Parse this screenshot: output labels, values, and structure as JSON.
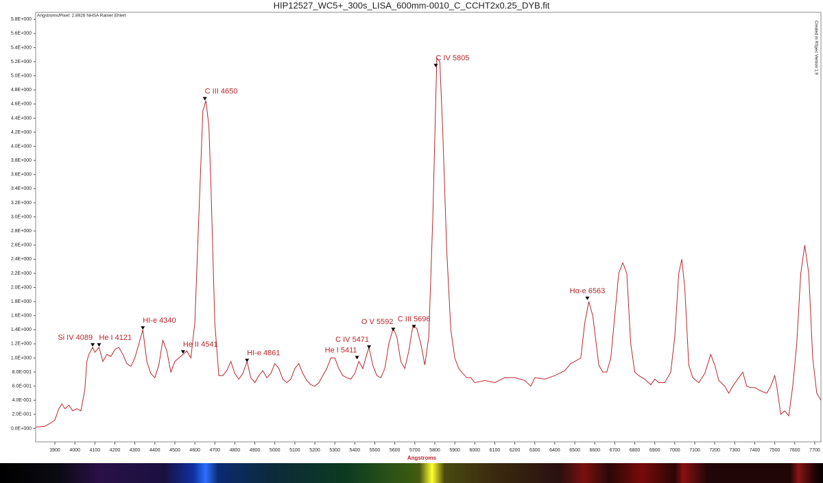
{
  "chart_data": {
    "type": "line",
    "title": "HIP12527_WC5+_300s_LISA_600mm-0010_C_CCHT2x0.25_DYB.fit",
    "subtitle": "Angstroms/Pixel: 2.8926 NHSA Rainer Ehlert",
    "credit": "Created in RSpec Version 1.9",
    "xlabel": "Angstroms",
    "color": "#b8262b",
    "grid": false,
    "xlim": [
      3804,
      7731
    ],
    "ylim": [
      -0.19,
      5.9
    ],
    "xticks": [
      3900,
      4000,
      4100,
      4200,
      4300,
      4400,
      4500,
      4600,
      4700,
      4800,
      4900,
      5000,
      5100,
      5200,
      5300,
      5400,
      5500,
      5600,
      5700,
      5800,
      5900,
      6000,
      6100,
      6200,
      6300,
      6400,
      6500,
      6600,
      6700,
      6800,
      6900,
      7000,
      7100,
      7200,
      7300,
      7400,
      7500,
      7600,
      7700
    ],
    "yticks": [
      {
        "value": 0,
        "label": "0.0E+000"
      },
      {
        "value": 0.2,
        "label": "2.0E-001"
      },
      {
        "value": 0.4,
        "label": "4.0E-001"
      },
      {
        "value": 0.6,
        "label": "6.0E-001"
      },
      {
        "value": 0.8,
        "label": "8.0E-001"
      },
      {
        "value": 1.0,
        "label": "1.0E+000"
      },
      {
        "value": 1.2,
        "label": "1.2E+000"
      },
      {
        "value": 1.4,
        "label": "1.4E+000"
      },
      {
        "value": 1.6,
        "label": "1.6E+000"
      },
      {
        "value": 1.8,
        "label": "1.8E+000"
      },
      {
        "value": 2.0,
        "label": "2.0E+000"
      },
      {
        "value": 2.2,
        "label": "2.2E+000"
      },
      {
        "value": 2.4,
        "label": "2.4E+000"
      },
      {
        "value": 2.6,
        "label": "2.6E+000"
      },
      {
        "value": 2.8,
        "label": "2.8E+000"
      },
      {
        "value": 3.0,
        "label": "3.0E+000"
      },
      {
        "value": 3.2,
        "label": "3.2E+000"
      },
      {
        "value": 3.4,
        "label": "3.4E+000"
      },
      {
        "value": 3.6,
        "label": "3.6E+000"
      },
      {
        "value": 3.8,
        "label": "3.8E+000"
      },
      {
        "value": 4.0,
        "label": "4.0E+000"
      },
      {
        "value": 4.2,
        "label": "4.2E+000"
      },
      {
        "value": 4.4,
        "label": "4.4E+000"
      },
      {
        "value": 4.6,
        "label": "4.6E+000"
      },
      {
        "value": 4.8,
        "label": "4.8E+000"
      },
      {
        "value": 5.0,
        "label": "5.0E+000"
      },
      {
        "value": 5.2,
        "label": "5.2E+000"
      },
      {
        "value": 5.4,
        "label": "5.4E+000"
      },
      {
        "value": 5.6,
        "label": "5.6E+000"
      },
      {
        "value": 5.8,
        "label": "5.8E+000"
      }
    ],
    "x": [
      3804,
      3850,
      3880,
      3900,
      3920,
      3935,
      3950,
      3970,
      3990,
      4010,
      4030,
      4050,
      4060,
      4070,
      4089,
      4100,
      4121,
      4140,
      4160,
      4180,
      4200,
      4220,
      4240,
      4260,
      4280,
      4300,
      4320,
      4340,
      4360,
      4380,
      4400,
      4420,
      4440,
      4460,
      4480,
      4500,
      4520,
      4541,
      4560,
      4580,
      4600,
      4620,
      4640,
      4655,
      4670,
      4680,
      4700,
      4720,
      4740,
      4760,
      4780,
      4800,
      4820,
      4840,
      4861,
      4880,
      4900,
      4920,
      4940,
      4960,
      4980,
      5000,
      5020,
      5040,
      5060,
      5080,
      5100,
      5120,
      5140,
      5160,
      5180,
      5200,
      5220,
      5240,
      5260,
      5280,
      5300,
      5320,
      5340,
      5360,
      5380,
      5400,
      5420,
      5440,
      5460,
      5471,
      5490,
      5510,
      5530,
      5550,
      5570,
      5592,
      5610,
      5630,
      5650,
      5670,
      5690,
      5710,
      5730,
      5750,
      5770,
      5790,
      5810,
      5825,
      5840,
      5860,
      5880,
      5900,
      5920,
      5940,
      5960,
      5980,
      6000,
      6050,
      6100,
      6150,
      6200,
      6250,
      6280,
      6300,
      6350,
      6400,
      6450,
      6480,
      6500,
      6530,
      6550,
      6570,
      6590,
      6620,
      6640,
      6660,
      6680,
      6700,
      6720,
      6740,
      6760,
      6780,
      6800,
      6820,
      6850,
      6880,
      6900,
      6920,
      6950,
      6980,
      7000,
      7020,
      7035,
      7050,
      7070,
      7090,
      7120,
      7150,
      7180,
      7200,
      7220,
      7250,
      7270,
      7290,
      7320,
      7340,
      7360,
      7380,
      7400,
      7420,
      7440,
      7460,
      7480,
      7500,
      7510,
      7530,
      7550,
      7570,
      7590,
      7610,
      7630,
      7650,
      7670,
      7690,
      7710,
      7731
    ],
    "values": [
      0.02,
      0.03,
      0.08,
      0.12,
      0.28,
      0.35,
      0.28,
      0.33,
      0.25,
      0.28,
      0.25,
      0.55,
      0.95,
      1.05,
      1.15,
      1.08,
      1.15,
      0.95,
      1.05,
      1.02,
      1.12,
      1.15,
      1.05,
      0.92,
      0.88,
      1.0,
      1.2,
      1.4,
      0.95,
      0.78,
      0.72,
      0.9,
      1.25,
      1.1,
      0.8,
      0.95,
      1.0,
      1.05,
      1.1,
      1.0,
      1.5,
      3.0,
      4.5,
      4.65,
      4.3,
      3.5,
      1.5,
      0.75,
      0.75,
      0.82,
      0.95,
      0.78,
      0.7,
      0.78,
      0.95,
      0.72,
      0.65,
      0.75,
      0.82,
      0.72,
      0.78,
      0.92,
      0.85,
      0.7,
      0.65,
      0.7,
      0.85,
      0.92,
      0.78,
      0.68,
      0.62,
      0.6,
      0.65,
      0.75,
      0.85,
      1.0,
      1.0,
      0.85,
      0.75,
      0.72,
      0.7,
      0.78,
      0.95,
      0.85,
      1.05,
      1.15,
      0.9,
      0.75,
      0.72,
      0.85,
      1.2,
      1.42,
      1.3,
      0.95,
      0.85,
      1.1,
      1.45,
      1.42,
      1.2,
      0.9,
      1.3,
      3.0,
      5.25,
      5.2,
      4.2,
      2.5,
      1.4,
      1.0,
      0.85,
      0.78,
      0.72,
      0.72,
      0.65,
      0.68,
      0.65,
      0.72,
      0.72,
      0.68,
      0.6,
      0.72,
      0.7,
      0.75,
      0.82,
      0.92,
      0.95,
      1.0,
      1.5,
      1.8,
      1.6,
      0.9,
      0.8,
      0.8,
      1.0,
      1.6,
      2.2,
      2.35,
      2.2,
      1.2,
      0.8,
      0.75,
      0.7,
      0.62,
      0.7,
      0.65,
      0.65,
      0.8,
      1.3,
      2.2,
      2.4,
      2.0,
      0.9,
      0.72,
      0.65,
      0.78,
      1.05,
      0.9,
      0.68,
      0.6,
      0.5,
      0.6,
      0.72,
      0.8,
      0.6,
      0.58,
      0.58,
      0.55,
      0.52,
      0.5,
      0.6,
      0.75,
      0.6,
      0.2,
      0.25,
      0.18,
      0.6,
      1.2,
      2.2,
      2.6,
      2.2,
      1.0,
      0.5,
      0.4
    ],
    "annotations": [
      {
        "label": "Si IV 4089",
        "x": 4089,
        "y": 1.17
      },
      {
        "label": "He I 4121",
        "x": 4121,
        "y": 1.17
      },
      {
        "label": "HI-e 4340",
        "x": 4340,
        "y": 1.41
      },
      {
        "label": "He II 4541",
        "x": 4541,
        "y": 1.07
      },
      {
        "label": "C III 4650",
        "x": 4650,
        "y": 4.66
      },
      {
        "label": "HI-e 4861",
        "x": 4861,
        "y": 0.95
      },
      {
        "label": "He I 5411",
        "x": 5411,
        "y": 0.99
      },
      {
        "label": "C IV 5471",
        "x": 5471,
        "y": 1.14
      },
      {
        "label": "O V 5592",
        "x": 5592,
        "y": 1.39
      },
      {
        "label": "C III 5696",
        "x": 5696,
        "y": 1.43
      },
      {
        "label": "C IV 5805",
        "x": 5805,
        "y": 5.13
      },
      {
        "label": "Hα-e 6563",
        "x": 6563,
        "y": 1.83
      }
    ]
  }
}
